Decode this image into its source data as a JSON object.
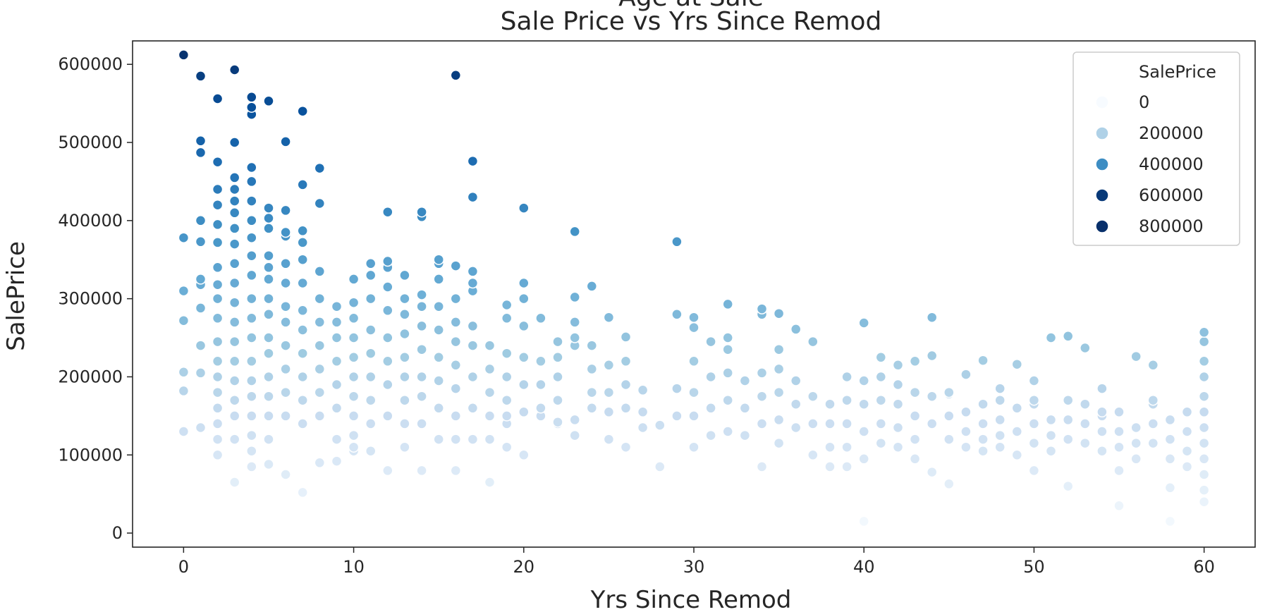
{
  "chart_data": {
    "type": "scatter",
    "suptitle": "Age at Sale",
    "title": "Sale Price vs Yrs Since Remod",
    "xlabel": "Yrs Since Remod",
    "ylabel": "SalePrice",
    "xlim": [
      -3,
      63
    ],
    "ylim": [
      -18000,
      630000
    ],
    "xticks": [
      0,
      10,
      20,
      30,
      40,
      50,
      60
    ],
    "yticks": [
      0,
      100000,
      200000,
      300000,
      400000,
      500000,
      600000
    ],
    "xtick_labels": [
      "0",
      "10",
      "20",
      "30",
      "40",
      "50",
      "60"
    ],
    "ytick_labels": [
      "0",
      "100000",
      "200000",
      "300000",
      "400000",
      "500000",
      "600000"
    ],
    "grid": false,
    "legend": {
      "title": "SalePrice",
      "placement": "top-right",
      "entries": [
        {
          "label": "0",
          "value": 0
        },
        {
          "label": "200000",
          "value": 200000
        },
        {
          "label": "400000",
          "value": 400000
        },
        {
          "label": "600000",
          "value": 600000
        },
        {
          "label": "800000",
          "value": 800000
        }
      ]
    },
    "hue": {
      "variable": "SalePrice",
      "min": 0,
      "max": 620000,
      "colors": [
        "#f7fbff",
        "#deebf7",
        "#c6dbef",
        "#9ecae1",
        "#6baed6",
        "#4292c6",
        "#2171b5",
        "#08519c",
        "#08306b"
      ]
    },
    "x": [
      0,
      0,
      0,
      0,
      0,
      0,
      0,
      1,
      1,
      1,
      1,
      1,
      1,
      1,
      1,
      1,
      1,
      1,
      1,
      2,
      2,
      2,
      2,
      2,
      2,
      2,
      2,
      2,
      2,
      2,
      2,
      2,
      2,
      2,
      2,
      2,
      2,
      3,
      3,
      3,
      3,
      3,
      3,
      3,
      3,
      3,
      3,
      3,
      3,
      3,
      3,
      3,
      3,
      3,
      3,
      3,
      4,
      4,
      4,
      4,
      4,
      4,
      4,
      4,
      4,
      4,
      4,
      4,
      4,
      4,
      4,
      4,
      4,
      4,
      4,
      4,
      5,
      5,
      5,
      5,
      5,
      5,
      5,
      5,
      5,
      5,
      5,
      5,
      5,
      5,
      5,
      5,
      6,
      6,
      6,
      6,
      6,
      6,
      6,
      6,
      6,
      6,
      6,
      6,
      6,
      7,
      7,
      7,
      7,
      7,
      7,
      7,
      7,
      7,
      7,
      7,
      7,
      7,
      8,
      8,
      8,
      8,
      8,
      8,
      8,
      8,
      8,
      8,
      9,
      9,
      9,
      9,
      9,
      9,
      9,
      9,
      10,
      10,
      10,
      10,
      10,
      10,
      10,
      10,
      10,
      10,
      10,
      11,
      11,
      11,
      11,
      11,
      11,
      11,
      11,
      11,
      12,
      12,
      12,
      12,
      12,
      12,
      12,
      12,
      12,
      12,
      13,
      13,
      13,
      13,
      13,
      13,
      13,
      13,
      13,
      14,
      14,
      14,
      14,
      14,
      14,
      14,
      14,
      14,
      14,
      15,
      15,
      15,
      15,
      15,
      15,
      15,
      15,
      15,
      16,
      16,
      16,
      16,
      16,
      16,
      16,
      16,
      16,
      16,
      17,
      17,
      17,
      17,
      17,
      17,
      17,
      17,
      17,
      17,
      18,
      18,
      18,
      18,
      18,
      18,
      19,
      19,
      19,
      19,
      19,
      19,
      19,
      19,
      20,
      20,
      20,
      20,
      20,
      20,
      20,
      20,
      21,
      21,
      21,
      21,
      21,
      22,
      22,
      22,
      22,
      22,
      22,
      23,
      23,
      23,
      23,
      23,
      23,
      23,
      24,
      24,
      24,
      24,
      24,
      25,
      25,
      25,
      25,
      25,
      26,
      26,
      26,
      26,
      26,
      27,
      27,
      27,
      28,
      28,
      29,
      29,
      29,
      29,
      30,
      30,
      30,
      30,
      30,
      30,
      31,
      31,
      31,
      31,
      32,
      32,
      32,
      32,
      32,
      32,
      33,
      33,
      33,
      34,
      34,
      34,
      34,
      34,
      34,
      35,
      35,
      35,
      35,
      35,
      35,
      36,
      36,
      36,
      36,
      37,
      37,
      37,
      37,
      38,
      38,
      38,
      38,
      39,
      39,
      39,
      39,
      39,
      40,
      40,
      40,
      40,
      40,
      40,
      41,
      41,
      41,
      41,
      41,
      42,
      42,
      42,
      42,
      42,
      43,
      43,
      43,
      43,
      43,
      44,
      44,
      44,
      44,
      44,
      45,
      45,
      45,
      45,
      45,
      46,
      46,
      46,
      46,
      47,
      47,
      47,
      47,
      47,
      48,
      48,
      48,
      48,
      48,
      49,
      49,
      49,
      49,
      50,
      50,
      50,
      50,
      50,
      50,
      51,
      51,
      51,
      51,
      52,
      52,
      52,
      52,
      52,
      53,
      53,
      53,
      53,
      54,
      54,
      54,
      54,
      54,
      55,
      55,
      55,
      55,
      55,
      56,
      56,
      56,
      56,
      57,
      57,
      57,
      57,
      57,
      58,
      58,
      58,
      58,
      58,
      59,
      59,
      59,
      59,
      60,
      60,
      60,
      60,
      60,
      60,
      60,
      60,
      60,
      60,
      60,
      60
    ],
    "y": [
      612000,
      378000,
      310000,
      272000,
      206000,
      182000,
      130000,
      585000,
      502000,
      487000,
      400000,
      373000,
      325000,
      318000,
      288000,
      240000,
      205000,
      135000,
      135000,
      556000,
      475000,
      440000,
      420000,
      395000,
      372000,
      340000,
      318000,
      300000,
      275000,
      245000,
      220000,
      200000,
      180000,
      160000,
      140000,
      120000,
      100000,
      593000,
      500000,
      455000,
      440000,
      425000,
      410000,
      390000,
      370000,
      345000,
      320000,
      295000,
      270000,
      245000,
      220000,
      195000,
      170000,
      150000,
      120000,
      65000,
      558000,
      545000,
      536000,
      468000,
      450000,
      425000,
      400000,
      378000,
      355000,
      330000,
      300000,
      275000,
      250000,
      220000,
      195000,
      175000,
      150000,
      125000,
      105000,
      85000,
      553000,
      416000,
      403000,
      390000,
      355000,
      340000,
      325000,
      300000,
      280000,
      250000,
      230000,
      200000,
      175000,
      150000,
      120000,
      88000,
      501000,
      413000,
      385000,
      380000,
      345000,
      320000,
      290000,
      270000,
      240000,
      210000,
      180000,
      150000,
      75000,
      540000,
      446000,
      387000,
      372000,
      350000,
      320000,
      285000,
      260000,
      230000,
      200000,
      170000,
      140000,
      52000,
      467000,
      422000,
      335000,
      300000,
      270000,
      240000,
      210000,
      180000,
      150000,
      90000,
      290000,
      270000,
      250000,
      220000,
      190000,
      160000,
      120000,
      92000,
      325000,
      295000,
      275000,
      250000,
      225000,
      200000,
      175000,
      150000,
      125000,
      110000,
      105000,
      345000,
      330000,
      300000,
      260000,
      230000,
      200000,
      170000,
      140000,
      105000,
      411000,
      348000,
      340000,
      315000,
      285000,
      250000,
      220000,
      190000,
      150000,
      80000,
      330000,
      300000,
      280000,
      255000,
      225000,
      200000,
      170000,
      140000,
      110000,
      411000,
      405000,
      305000,
      290000,
      265000,
      235000,
      200000,
      175000,
      140000,
      80000,
      350000,
      345000,
      325000,
      290000,
      260000,
      225000,
      195000,
      160000,
      120000,
      586000,
      342000,
      300000,
      270000,
      245000,
      215000,
      185000,
      150000,
      120000,
      80000,
      476000,
      430000,
      335000,
      320000,
      310000,
      265000,
      240000,
      200000,
      160000,
      120000,
      240000,
      210000,
      180000,
      150000,
      120000,
      65000,
      292000,
      275000,
      230000,
      200000,
      170000,
      140000,
      110000,
      150000,
      416000,
      320000,
      300000,
      265000,
      225000,
      190000,
      155000,
      100000,
      275000,
      220000,
      190000,
      160000,
      150000,
      245000,
      225000,
      200000,
      170000,
      140000,
      142000,
      386000,
      302000,
      270000,
      250000,
      240000,
      145000,
      125000,
      316000,
      240000,
      210000,
      180000,
      160000,
      276000,
      215000,
      180000,
      155000,
      120000,
      251000,
      220000,
      190000,
      160000,
      110000,
      183000,
      155000,
      135000,
      138000,
      85000,
      373000,
      280000,
      185000,
      150000,
      276000,
      263000,
      220000,
      180000,
      150000,
      110000,
      245000,
      200000,
      160000,
      125000,
      293000,
      250000,
      235000,
      205000,
      170000,
      130000,
      195000,
      160000,
      125000,
      287000,
      280000,
      205000,
      175000,
      140000,
      85000,
      281000,
      235000,
      210000,
      180000,
      145000,
      115000,
      261000,
      195000,
      165000,
      135000,
      245000,
      175000,
      140000,
      100000,
      165000,
      140000,
      110000,
      85000,
      200000,
      170000,
      140000,
      110000,
      85000,
      269000,
      195000,
      165000,
      130000,
      95000,
      15000,
      225000,
      200000,
      170000,
      140000,
      115000,
      215000,
      190000,
      165000,
      135000,
      110000,
      220000,
      180000,
      150000,
      120000,
      95000,
      276000,
      227000,
      175000,
      140000,
      78000,
      178000,
      150000,
      120000,
      63000,
      180000,
      155000,
      130000,
      110000,
      203000,
      165000,
      140000,
      120000,
      105000,
      221000,
      170000,
      145000,
      125000,
      110000,
      185000,
      160000,
      130000,
      100000,
      216000,
      195000,
      170000,
      140000,
      115000,
      80000,
      165000,
      145000,
      125000,
      105000,
      250000,
      170000,
      145000,
      120000,
      60000,
      252000,
      165000,
      140000,
      115000,
      237000,
      185000,
      155000,
      130000,
      105000,
      150000,
      130000,
      110000,
      80000,
      35000,
      155000,
      135000,
      115000,
      95000,
      226000,
      215000,
      170000,
      140000,
      115000,
      165000,
      145000,
      120000,
      95000,
      58000,
      15000,
      155000,
      130000,
      105000,
      85000,
      257000,
      245000,
      220000,
      200000,
      175000,
      155000,
      135000,
      115000,
      95000,
      75000,
      55000,
      40000
    ]
  }
}
